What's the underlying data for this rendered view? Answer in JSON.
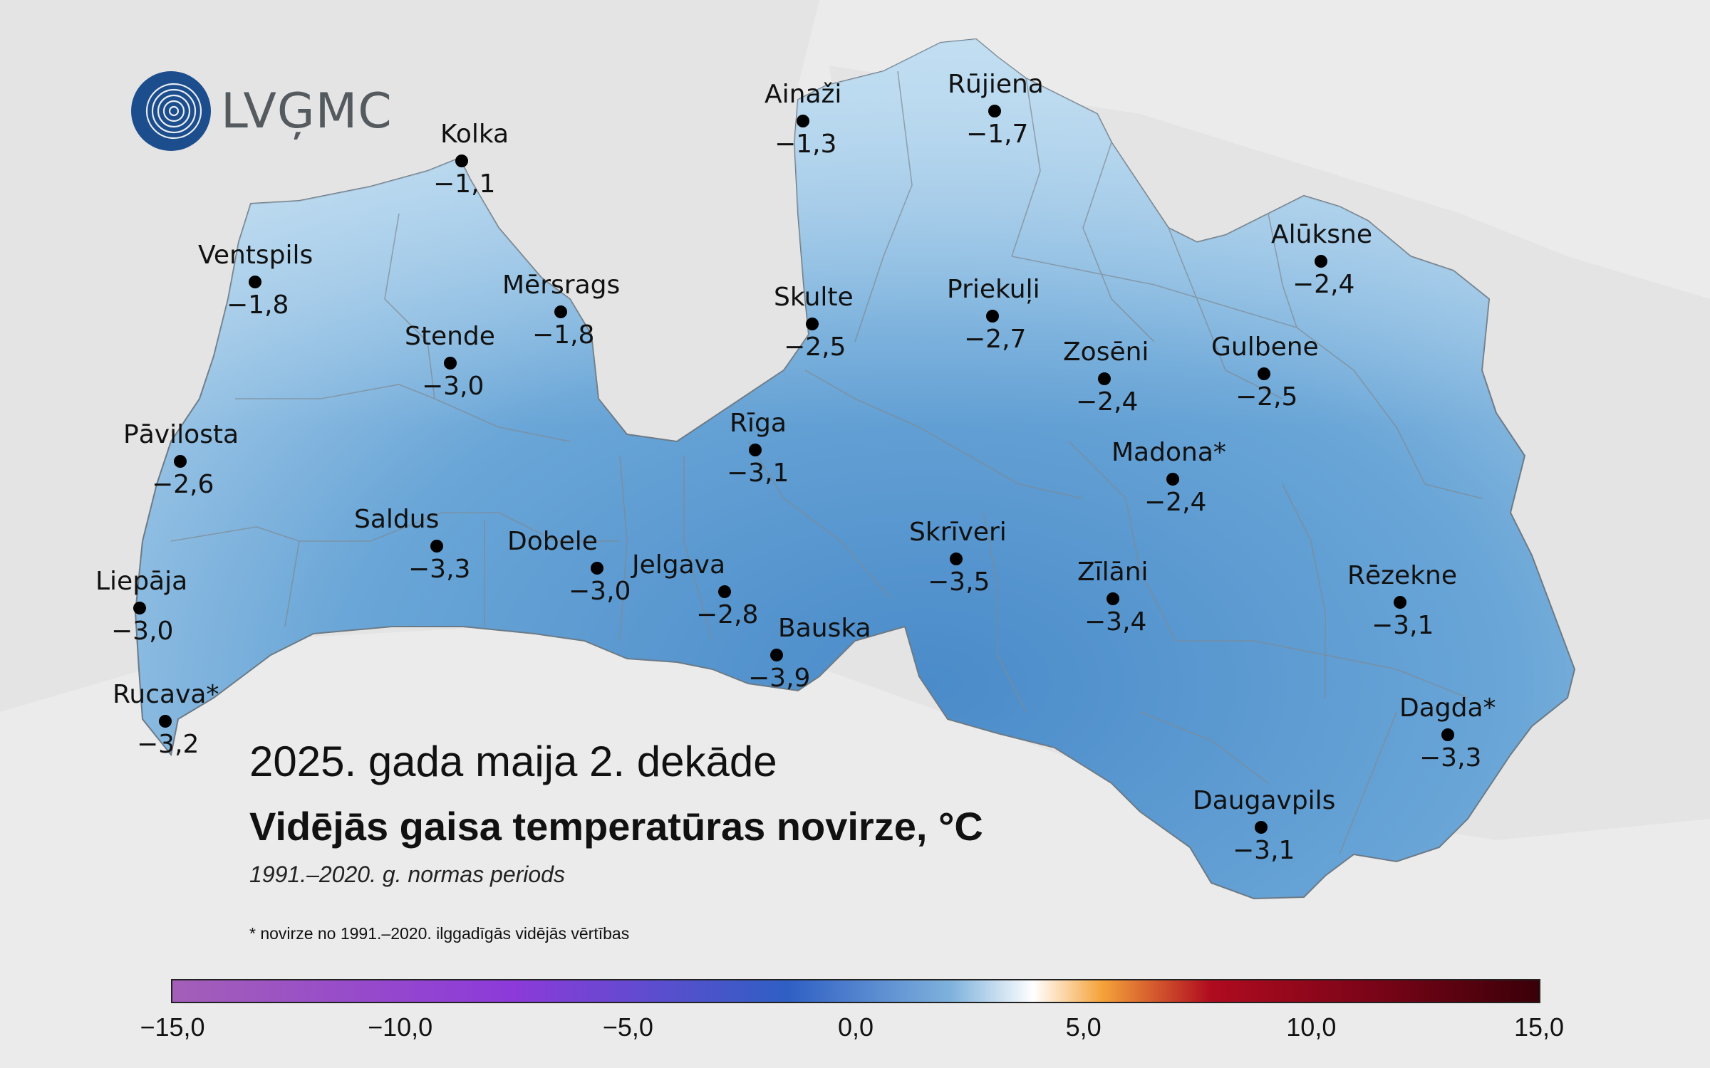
{
  "logo": {
    "text": "LVĢMC"
  },
  "title": "2025. gada maija 2. dekāde",
  "subtitle": "Vidējās gaisa temperatūras novirze, °C",
  "period": "1991.–2020. g. normas periods",
  "footnote": "* novirze no 1991.–2020. ilggadīgās vidējās vērtības",
  "colors": {
    "sea": "#e4e4e4",
    "land_neighbors": "#e4e4e4",
    "latvia_light": "#b6d6ec",
    "latvia_dark": "#4f8fcb",
    "border": "#8a8a8a"
  },
  "colorbar": {
    "ticks": [
      "−15,0",
      "−10,0",
      "−5,0",
      "0,0",
      "5,0",
      "10,0",
      "15,0"
    ],
    "min": -15,
    "max": 15
  },
  "stations": [
    {
      "name": "Kolka",
      "value": "−1,1"
    },
    {
      "name": "Ventspils",
      "value": "−1,8"
    },
    {
      "name": "Mērsrags",
      "value": "−1,8"
    },
    {
      "name": "Stende",
      "value": "−3,0"
    },
    {
      "name": "Pāvilosta",
      "value": "−2,6"
    },
    {
      "name": "Saldus",
      "value": "−3,3"
    },
    {
      "name": "Dobele",
      "value": "−3,0"
    },
    {
      "name": "Liepāja",
      "value": "−3,0"
    },
    {
      "name": "Rucava*",
      "value": "−3,2"
    },
    {
      "name": "Jelgava",
      "value": "−2,8"
    },
    {
      "name": "Bauska",
      "value": "−3,9"
    },
    {
      "name": "Rīga",
      "value": "−3,1"
    },
    {
      "name": "Ainaži",
      "value": "−1,3"
    },
    {
      "name": "Skulte",
      "value": "−2,5"
    },
    {
      "name": "Rūjiena",
      "value": "−1,7"
    },
    {
      "name": "Priekuļi",
      "value": "−2,7"
    },
    {
      "name": "Skrīveri",
      "value": "−3,5"
    },
    {
      "name": "Zosēni",
      "value": "−2,4"
    },
    {
      "name": "Madona*",
      "value": "−2,4"
    },
    {
      "name": "Zīlāni",
      "value": "−3,4"
    },
    {
      "name": "Alūksne",
      "value": "−2,4"
    },
    {
      "name": "Gulbene",
      "value": "−2,5"
    },
    {
      "name": "Rēzekne",
      "value": "−3,1"
    },
    {
      "name": "Dagda*",
      "value": "−3,3"
    },
    {
      "name": "Daugavpils",
      "value": "−3,1"
    }
  ]
}
